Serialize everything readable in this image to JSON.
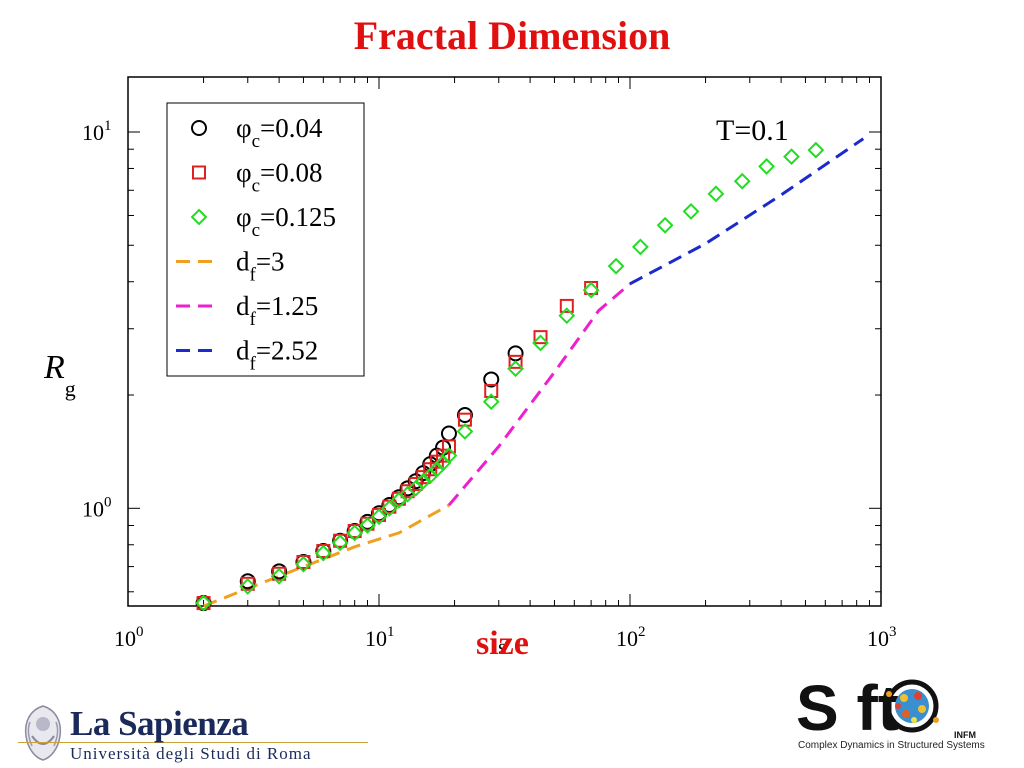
{
  "slide": {
    "title": "Fractal Dimension"
  },
  "annotation": {
    "temperature": "T=0.1",
    "xlabel_overlay": "size"
  },
  "chart_data": {
    "type": "scatter",
    "title": "",
    "xlabel": "s",
    "ylabel_main": "R",
    "ylabel_sub": "g",
    "xscale": "log",
    "yscale": "log",
    "xlim": [
      1,
      1000
    ],
    "ylim": [
      0.55,
      14
    ],
    "x_ticks": [
      {
        "value": 1,
        "base": "10",
        "exp": "0"
      },
      {
        "value": 10,
        "base": "10",
        "exp": "1"
      },
      {
        "value": 100,
        "base": "10",
        "exp": "2"
      },
      {
        "value": 1000,
        "base": "10",
        "exp": "3"
      }
    ],
    "y_ticks": [
      {
        "value": 1,
        "base": "10",
        "exp": "0"
      },
      {
        "value": 10,
        "base": "10",
        "exp": "1"
      }
    ],
    "grid": false,
    "legend_position": "top-left",
    "series": [
      {
        "kind": "points",
        "marker": "circle",
        "color": "#000000",
        "legend_symbol": "φ",
        "legend_sub": "c",
        "legend_value": "=0.04",
        "points": [
          [
            2,
            0.56
          ],
          [
            3,
            0.64
          ],
          [
            4,
            0.68
          ],
          [
            5,
            0.72
          ],
          [
            6,
            0.77
          ],
          [
            7,
            0.82
          ],
          [
            8,
            0.87
          ],
          [
            9,
            0.92
          ],
          [
            10,
            0.97
          ],
          [
            11,
            1.02
          ],
          [
            12,
            1.07
          ],
          [
            13,
            1.13
          ],
          [
            14,
            1.18
          ],
          [
            15,
            1.24
          ],
          [
            16,
            1.31
          ],
          [
            17,
            1.38
          ],
          [
            18,
            1.45
          ],
          [
            19,
            1.58
          ],
          [
            22,
            1.77
          ],
          [
            28,
            2.2
          ],
          [
            35,
            2.58
          ]
        ]
      },
      {
        "kind": "points",
        "marker": "square",
        "color": "#e02020",
        "legend_symbol": "φ",
        "legend_sub": "c",
        "legend_value": "=0.08",
        "points": [
          [
            2,
            0.56
          ],
          [
            3,
            0.63
          ],
          [
            4,
            0.67
          ],
          [
            5,
            0.72
          ],
          [
            6,
            0.77
          ],
          [
            7,
            0.82
          ],
          [
            8,
            0.87
          ],
          [
            9,
            0.91
          ],
          [
            10,
            0.96
          ],
          [
            11,
            1.01
          ],
          [
            12,
            1.06
          ],
          [
            13,
            1.11
          ],
          [
            14,
            1.16
          ],
          [
            15,
            1.21
          ],
          [
            16,
            1.27
          ],
          [
            17,
            1.33
          ],
          [
            18,
            1.38
          ],
          [
            19,
            1.46
          ],
          [
            22,
            1.72
          ],
          [
            28,
            2.05
          ],
          [
            35,
            2.45
          ],
          [
            44,
            2.85
          ],
          [
            56,
            3.45
          ],
          [
            70,
            3.85
          ]
        ]
      },
      {
        "kind": "points",
        "marker": "diamond",
        "color": "#22dd22",
        "legend_symbol": "φ",
        "legend_sub": "c",
        "legend_value": "=0.125",
        "points": [
          [
            2,
            0.56
          ],
          [
            3,
            0.62
          ],
          [
            4,
            0.66
          ],
          [
            5,
            0.71
          ],
          [
            6,
            0.76
          ],
          [
            7,
            0.81
          ],
          [
            8,
            0.86
          ],
          [
            9,
            0.9
          ],
          [
            10,
            0.95
          ],
          [
            11,
            1.0
          ],
          [
            12,
            1.05
          ],
          [
            13,
            1.09
          ],
          [
            14,
            1.13
          ],
          [
            15,
            1.18
          ],
          [
            16,
            1.22
          ],
          [
            17,
            1.27
          ],
          [
            18,
            1.32
          ],
          [
            19,
            1.38
          ],
          [
            22,
            1.6
          ],
          [
            28,
            1.92
          ],
          [
            35,
            2.35
          ],
          [
            44,
            2.75
          ],
          [
            56,
            3.25
          ],
          [
            70,
            3.8
          ],
          [
            88,
            4.4
          ],
          [
            110,
            4.95
          ],
          [
            138,
            5.65
          ],
          [
            175,
            6.15
          ],
          [
            220,
            6.85
          ],
          [
            280,
            7.4
          ],
          [
            350,
            8.1
          ],
          [
            440,
            8.6
          ],
          [
            550,
            8.95
          ]
        ]
      },
      {
        "kind": "line",
        "color": "#f0a020",
        "legend_symbol": "d",
        "legend_sub": "f",
        "legend_value": "=3",
        "points": [
          [
            2,
            0.55
          ],
          [
            4,
            0.66
          ],
          [
            8,
            0.79
          ],
          [
            12,
            0.86
          ],
          [
            19,
            1.02
          ]
        ]
      },
      {
        "kind": "line",
        "color": "#ee20cc",
        "legend_symbol": "d",
        "legend_sub": "f",
        "legend_value": "=1.25",
        "points": [
          [
            19,
            1.02
          ],
          [
            30,
            1.46
          ],
          [
            50,
            2.3
          ],
          [
            75,
            3.35
          ],
          [
            100,
            3.95
          ]
        ]
      },
      {
        "kind": "line",
        "color": "#1a2acc",
        "legend_symbol": "d",
        "legend_sub": "f",
        "legend_value": "=2.52",
        "points": [
          [
            100,
            3.95
          ],
          [
            200,
            5.05
          ],
          [
            400,
            6.8
          ],
          [
            850,
            9.6
          ]
        ]
      }
    ]
  },
  "logos": {
    "sapienza_name": "La Sapienza",
    "sapienza_sub": "Università degli Studi di Roma",
    "soft_letters": "S   ft",
    "soft_infm": "INFM",
    "soft_tagline": "Complex Dynamics in Structured Systems"
  }
}
